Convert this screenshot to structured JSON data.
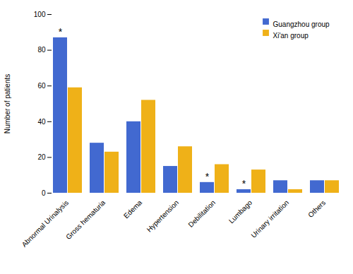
{
  "chart_data": {
    "type": "bar",
    "categories": [
      "Abnormal Urinalysis",
      "Gross hematuria",
      "Edema",
      "Hypertension",
      "Debilitation",
      "Lumbago",
      "Urinary irritation",
      "Others"
    ],
    "series": [
      {
        "name": "Guangzhou group",
        "values": [
          87,
          28,
          40,
          15,
          6,
          2,
          7,
          7
        ]
      },
      {
        "name": "Xi'an group",
        "values": [
          59,
          23,
          52,
          26,
          16,
          13,
          2,
          7
        ]
      }
    ],
    "ylabel": "Number of patients",
    "ylim": [
      0,
      100
    ],
    "yticks": [
      0,
      20,
      40,
      60,
      80,
      100
    ],
    "grid": false,
    "legend": "upper right",
    "annotations": [
      {
        "text": "*",
        "category": "Abnormal Urinalysis",
        "series": "Guangzhou group"
      },
      {
        "text": "*",
        "category": "Debilitation",
        "series": "Guangzhou group"
      },
      {
        "text": "*",
        "category": "Lumbago",
        "series": "Guangzhou group"
      }
    ]
  }
}
